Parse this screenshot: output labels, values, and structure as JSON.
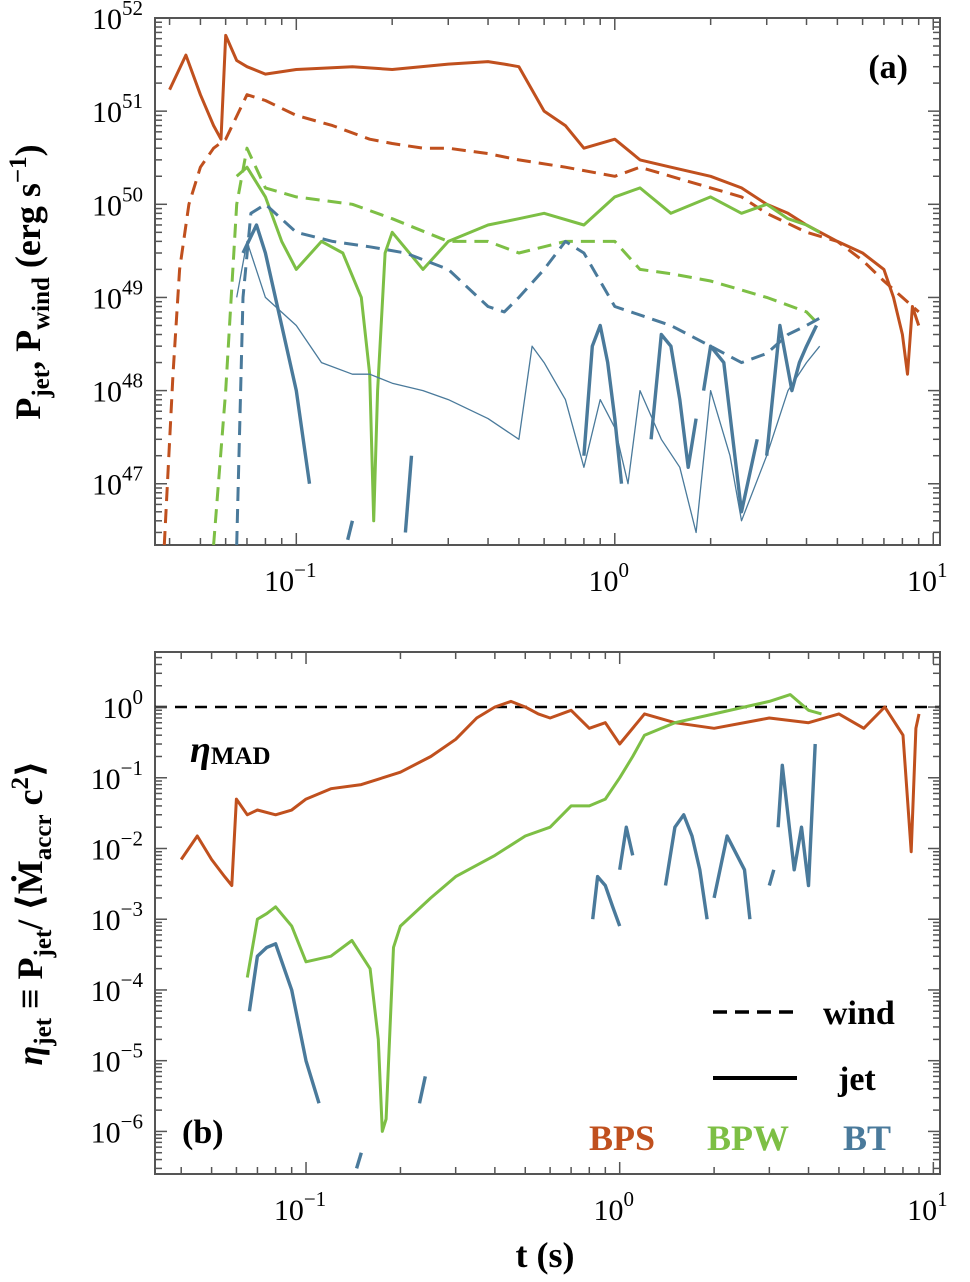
{
  "figure": {
    "title_a": "(a)",
    "title_b": "(b)"
  },
  "colors": {
    "BPS": "#c0501e",
    "BPW": "#7dbf45",
    "BT": "#4a7a9b",
    "axis": "#555555",
    "ref": "#000000"
  },
  "chart_data": [
    {
      "type": "line",
      "panel_label": "(a)",
      "xscale": "log",
      "yscale": "log",
      "xlim": [
        0.036,
        10.5
      ],
      "ylim": [
        2.2e+46,
        1e+52
      ],
      "xlabel": "",
      "ylabel": "P_jet, P_wind (erg s^-1)",
      "ylabel_parts": {
        "main1": "P",
        "sub1": "jet",
        "sep": ", ",
        "main2": "P",
        "sub2": "wind",
        "unit_open": " (erg s",
        "unit_exp": "−1",
        "unit_close": ")"
      },
      "xticks": [
        {
          "v": 0.1,
          "base": "10",
          "exp": "−1"
        },
        {
          "v": 1,
          "base": "10",
          "exp": "0"
        },
        {
          "v": 10,
          "base": "10",
          "exp": "1"
        }
      ],
      "yticks": [
        {
          "v": 1e+47,
          "base": "10",
          "exp": "47"
        },
        {
          "v": 1e+48,
          "base": "10",
          "exp": "48"
        },
        {
          "v": 1e+49,
          "base": "10",
          "exp": "49"
        },
        {
          "v": 1e+50,
          "base": "10",
          "exp": "50"
        },
        {
          "v": 1e+51,
          "base": "10",
          "exp": "51"
        },
        {
          "v": 1e+52,
          "base": "10",
          "exp": "52"
        }
      ],
      "series": [
        {
          "name": "BPS wind",
          "model": "BPS",
          "style": "dashed",
          "width": 3,
          "x": [
            0.0385,
            0.041,
            0.043,
            0.046,
            0.05,
            0.055,
            0.06,
            0.07,
            0.08,
            0.1,
            0.13,
            0.17,
            0.2,
            0.25,
            0.3,
            0.4,
            0.5,
            0.7,
            1.0,
            1.2,
            1.5,
            2.0,
            2.5,
            3.0,
            4.0,
            5.0,
            6.0,
            7.0,
            8.0,
            9.0
          ],
          "y": [
            2.2e+46,
            1.5e+48,
            2e+49,
            1e+50,
            2.5e+50,
            4e+50,
            5e+50,
            1.5e+51,
            1.3e+51,
            9e+50,
            7e+50,
            5e+50,
            4.5e+50,
            4e+50,
            4e+50,
            3.5e+50,
            3e+50,
            2.5e+50,
            2e+50,
            2.5e+50,
            2e+50,
            1.5e+50,
            1.2e+50,
            8e+49,
            5e+49,
            4e+49,
            2.5e+49,
            1.5e+49,
            1e+49,
            7e+48
          ]
        },
        {
          "name": "BPS jet",
          "model": "BPS",
          "style": "solid",
          "width": 3,
          "x": [
            0.04,
            0.045,
            0.05,
            0.055,
            0.058,
            0.06,
            0.065,
            0.07,
            0.08,
            0.1,
            0.15,
            0.2,
            0.3,
            0.4,
            0.45,
            0.5,
            0.6,
            0.7,
            0.8,
            1.0,
            1.2,
            1.5,
            2.0,
            2.5,
            3.0,
            3.5,
            4.0,
            5.0,
            6.0,
            7.0,
            7.5,
            8.0,
            8.3,
            8.6,
            9.0
          ],
          "y": [
            1.7e+51,
            4e+51,
            1.5e+51,
            7e+50,
            5e+50,
            6.5e+51,
            3.5e+51,
            3e+51,
            2.5e+51,
            2.8e+51,
            3e+51,
            2.8e+51,
            3.2e+51,
            3.4e+51,
            3.2e+51,
            3e+51,
            1e+51,
            7e+50,
            4e+50,
            5e+50,
            3e+50,
            2.5e+50,
            2e+50,
            1.5e+50,
            1e+50,
            8e+49,
            6e+49,
            4e+49,
            3e+49,
            2e+49,
            1e+49,
            4e+48,
            1.5e+48,
            8e+48,
            5e+48
          ]
        },
        {
          "name": "BPW wind",
          "model": "BPW",
          "style": "dashed",
          "width": 3,
          "x": [
            0.055,
            0.06,
            0.065,
            0.07,
            0.08,
            0.1,
            0.15,
            0.2,
            0.3,
            0.4,
            0.5,
            0.7,
            1.0,
            1.2,
            1.5,
            2.0,
            3.0,
            4.0,
            4.4
          ],
          "y": [
            2.2e+46,
            1e+48,
            1e+50,
            4e+50,
            1.5e+50,
            1.2e+50,
            1e+50,
            7e+49,
            4e+49,
            4e+49,
            3e+49,
            4e+49,
            4e+49,
            2e+49,
            1.8e+49,
            1.5e+49,
            1e+49,
            7e+48,
            5e+48
          ]
        },
        {
          "name": "BPW jet",
          "model": "BPW",
          "style": "solid",
          "width": 3,
          "x": [
            0.065,
            0.07,
            0.08,
            0.09,
            0.1,
            0.12,
            0.14,
            0.16,
            0.17,
            0.175,
            0.18,
            0.19,
            0.2,
            0.25,
            0.3,
            0.4,
            0.5,
            0.6,
            0.8,
            1.0,
            1.2,
            1.5,
            2.0,
            2.5,
            3.0,
            3.5,
            4.0,
            4.4
          ],
          "y": [
            2e+50,
            2.5e+50,
            1.2e+50,
            4e+49,
            2e+49,
            4e+49,
            3e+49,
            1e+49,
            1.5e+48,
            4e+46,
            1e+48,
            3e+49,
            5e+49,
            2e+49,
            4e+49,
            6e+49,
            7e+49,
            8e+49,
            6e+49,
            1.2e+50,
            1.5e+50,
            8e+49,
            1.2e+50,
            8e+49,
            1e+50,
            7e+49,
            6e+49,
            5e+49
          ]
        },
        {
          "name": "BT wind",
          "model": "BT",
          "style": "dashed",
          "width": 3,
          "x": [
            0.065,
            0.068,
            0.072,
            0.08,
            0.1,
            0.13,
            0.17,
            0.22,
            0.3,
            0.4,
            0.45,
            0.5,
            0.6,
            0.7,
            0.8,
            1.0,
            1.5,
            2.0,
            2.5,
            3.0,
            3.5,
            4.0,
            4.4
          ],
          "y": [
            2.2e+46,
            1e+49,
            8e+49,
            1e+50,
            5e+49,
            4e+49,
            3.5e+49,
            3e+49,
            2e+49,
            8e+48,
            7e+48,
            1e+49,
            2e+49,
            4e+49,
            3e+49,
            8e+48,
            5e+48,
            3e+48,
            2e+48,
            2.5e+48,
            4e+48,
            5e+48,
            6e+48
          ]
        },
        {
          "name": "BT total (thin)",
          "model": "BT",
          "style": "thin",
          "width": 1.3,
          "x": [
            0.065,
            0.07,
            0.08,
            0.1,
            0.12,
            0.15,
            0.17,
            0.2,
            0.25,
            0.3,
            0.4,
            0.5,
            0.55,
            0.6,
            0.7,
            0.8,
            0.9,
            1.0,
            1.1,
            1.2,
            1.4,
            1.6,
            1.8,
            2.0,
            2.3,
            2.5,
            3.0,
            3.5,
            4.0,
            4.4
          ],
          "y": [
            1e+49,
            4e+49,
            1e+49,
            5e+48,
            2e+48,
            1.5e+48,
            1.5e+48,
            1.2e+48,
            1e+48,
            8e+47,
            5e+47,
            3e+47,
            3e+48,
            2e+48,
            8e+47,
            1.5e+47,
            8e+47,
            4e+47,
            1e+47,
            1e+48,
            3e+47,
            1.5e+47,
            3e+46,
            1e+48,
            2e+47,
            4e+46,
            2e+47,
            1e+48,
            2e+48,
            3e+48
          ]
        },
        {
          "name": "BT jet seg 1",
          "model": "BT",
          "style": "solid",
          "width": 3.4,
          "x": [
            0.068,
            0.075,
            0.08,
            0.09,
            0.1,
            0.11
          ],
          "y": [
            3e+49,
            6e+49,
            3e+49,
            5e+48,
            1e+48,
            1e+47
          ]
        },
        {
          "name": "BT jet seg 2",
          "model": "BT",
          "style": "solid",
          "width": 3.4,
          "x": [
            0.145,
            0.15
          ],
          "y": [
            2.5e+46,
            4e+46
          ]
        },
        {
          "name": "BT jet seg 3",
          "model": "BT",
          "style": "solid",
          "width": 3.4,
          "x": [
            0.22,
            0.23
          ],
          "y": [
            3e+46,
            2e+47
          ]
        },
        {
          "name": "BT jet seg 4",
          "model": "BT",
          "style": "solid",
          "width": 3.4,
          "x": [
            0.8,
            0.85,
            0.9,
            0.95,
            1.0,
            1.05
          ],
          "y": [
            2e+47,
            3e+48,
            5e+48,
            2e+48,
            5e+47,
            1e+47
          ]
        },
        {
          "name": "BT jet seg 5",
          "model": "BT",
          "style": "solid",
          "width": 3.4,
          "x": [
            1.3,
            1.4,
            1.5,
            1.6,
            1.7,
            1.8
          ],
          "y": [
            3e+47,
            4e+48,
            3e+48,
            8e+47,
            1.5e+47,
            5e+47
          ]
        },
        {
          "name": "BT jet seg 6",
          "model": "BT",
          "style": "solid",
          "width": 3.4,
          "x": [
            1.9,
            2.0,
            2.2,
            2.5,
            2.8
          ],
          "y": [
            1e+48,
            3e+48,
            2e+48,
            5e+46,
            3e+47
          ]
        },
        {
          "name": "BT jet seg 7",
          "model": "BT",
          "style": "solid",
          "width": 3.4,
          "x": [
            3.0,
            3.3,
            3.6,
            3.8,
            4.0,
            4.3
          ],
          "y": [
            2e+47,
            5e+48,
            1e+48,
            2e+48,
            3e+48,
            5e+48
          ]
        }
      ]
    },
    {
      "type": "line",
      "panel_label": "(b)",
      "xscale": "log",
      "yscale": "log",
      "xlim": [
        0.033,
        10.5
      ],
      "ylim": [
        2.5e-07,
        6
      ],
      "xlabel": "t (s)",
      "ylabel": "η_jet ≡ P_jet/ ⟨Ṁ_accr c^2⟩",
      "ylabel_parts": {
        "eta": "η",
        "sub1": "jet",
        "equiv": " ≡ P",
        "sub2": "jet",
        "open": "/ ⟨",
        "mdot": "Ṁ",
        "sub3": "accr",
        "c": " c",
        "exp": "2",
        "close": "⟩"
      },
      "annotation": {
        "eta": "η",
        "sub": "MAD"
      },
      "reference_line": {
        "y": 1,
        "style": "dashed"
      },
      "legend": {
        "placement": "bottom-right",
        "wind": "wind",
        "jet": "jet",
        "models": [
          "BPS",
          "BPW",
          "BT"
        ]
      },
      "xticks": [
        {
          "v": 0.1,
          "base": "10",
          "exp": "−1"
        },
        {
          "v": 1,
          "base": "10",
          "exp": "0"
        },
        {
          "v": 10,
          "base": "10",
          "exp": "1"
        }
      ],
      "yticks": [
        {
          "v": 1e-06,
          "base": "10",
          "exp": "−6"
        },
        {
          "v": 1e-05,
          "base": "10",
          "exp": "−5"
        },
        {
          "v": 0.0001,
          "base": "10",
          "exp": "−4"
        },
        {
          "v": 0.001,
          "base": "10",
          "exp": "−3"
        },
        {
          "v": 0.01,
          "base": "10",
          "exp": "−2"
        },
        {
          "v": 0.1,
          "base": "10",
          "exp": "−1"
        },
        {
          "v": 1,
          "base": "10",
          "exp": "0"
        }
      ],
      "series": [
        {
          "name": "BPS",
          "model": "BPS",
          "style": "solid",
          "width": 3,
          "x": [
            0.04,
            0.045,
            0.05,
            0.055,
            0.058,
            0.06,
            0.065,
            0.07,
            0.08,
            0.09,
            0.1,
            0.12,
            0.15,
            0.2,
            0.25,
            0.3,
            0.35,
            0.4,
            0.45,
            0.5,
            0.55,
            0.6,
            0.7,
            0.8,
            0.9,
            1.0,
            1.2,
            1.5,
            2.0,
            3.0,
            4.0,
            5.0,
            6.0,
            7.0,
            8.0,
            8.5,
            8.8,
            9.0
          ],
          "y": [
            0.007,
            0.015,
            0.007,
            0.004,
            0.003,
            0.05,
            0.03,
            0.035,
            0.03,
            0.035,
            0.05,
            0.07,
            0.08,
            0.12,
            0.2,
            0.35,
            0.7,
            1.0,
            1.2,
            1.0,
            0.8,
            0.7,
            0.9,
            0.5,
            0.6,
            0.3,
            0.8,
            0.6,
            0.5,
            0.7,
            0.6,
            0.8,
            0.5,
            1.0,
            0.4,
            0.009,
            0.5,
            0.8
          ]
        },
        {
          "name": "BPW",
          "model": "BPW",
          "style": "solid",
          "width": 3,
          "x": [
            0.065,
            0.07,
            0.075,
            0.08,
            0.09,
            0.1,
            0.12,
            0.14,
            0.16,
            0.17,
            0.175,
            0.18,
            0.19,
            0.2,
            0.25,
            0.3,
            0.4,
            0.5,
            0.6,
            0.7,
            0.8,
            0.9,
            1.0,
            1.1,
            1.2,
            1.5,
            2.0,
            2.5,
            3.0,
            3.5,
            4.0,
            4.4
          ],
          "y": [
            0.00015,
            0.001,
            0.0012,
            0.0015,
            0.0008,
            0.00025,
            0.0003,
            0.0005,
            0.0002,
            2e-05,
            1e-06,
            1.5e-06,
            0.0004,
            0.0008,
            0.002,
            0.004,
            0.008,
            0.015,
            0.02,
            0.04,
            0.04,
            0.05,
            0.1,
            0.2,
            0.4,
            0.6,
            0.8,
            1.0,
            1.2,
            1.5,
            0.9,
            0.8
          ]
        },
        {
          "name": "BT seg 1",
          "model": "BT",
          "style": "solid",
          "width": 3.4,
          "x": [
            0.066,
            0.07,
            0.075,
            0.08,
            0.09,
            0.1,
            0.11
          ],
          "y": [
            5e-05,
            0.0003,
            0.0004,
            0.00045,
            0.0001,
            1e-05,
            2.5e-06
          ]
        },
        {
          "name": "BT seg 2",
          "model": "BT",
          "style": "solid",
          "width": 3.4,
          "x": [
            0.145,
            0.15
          ],
          "y": [
            3e-07,
            5e-07
          ]
        },
        {
          "name": "BT seg 3",
          "model": "BT",
          "style": "solid",
          "width": 3.4,
          "x": [
            0.23,
            0.24
          ],
          "y": [
            2.5e-06,
            6e-06
          ]
        },
        {
          "name": "BT seg 4",
          "model": "BT",
          "style": "solid",
          "width": 3.4,
          "x": [
            0.82,
            0.85,
            0.9,
            0.95,
            1.0
          ],
          "y": [
            0.001,
            0.004,
            0.003,
            0.0015,
            0.0008
          ]
        },
        {
          "name": "BT seg 5",
          "model": "BT",
          "style": "solid",
          "width": 3.4,
          "x": [
            1.0,
            1.05,
            1.1
          ],
          "y": [
            0.005,
            0.02,
            0.008
          ]
        },
        {
          "name": "BT seg 6",
          "model": "BT",
          "style": "solid",
          "width": 3.4,
          "x": [
            1.4,
            1.5,
            1.6,
            1.7,
            1.8,
            1.9
          ],
          "y": [
            0.003,
            0.02,
            0.03,
            0.015,
            0.005,
            0.001
          ]
        },
        {
          "name": "BT seg 7",
          "model": "BT",
          "style": "solid",
          "width": 3.4,
          "x": [
            2.0,
            2.2,
            2.5,
            2.6
          ],
          "y": [
            0.002,
            0.015,
            0.005,
            0.001
          ]
        },
        {
          "name": "BT seg 8",
          "model": "BT",
          "style": "solid",
          "width": 3.4,
          "x": [
            3.0,
            3.1
          ],
          "y": [
            0.003,
            0.005
          ]
        },
        {
          "name": "BT seg 9",
          "model": "BT",
          "style": "solid",
          "width": 3.4,
          "x": [
            3.2,
            3.3,
            3.6,
            3.8,
            4.0,
            4.2
          ],
          "y": [
            0.02,
            0.15,
            0.005,
            0.02,
            0.003,
            0.3
          ]
        }
      ]
    }
  ]
}
